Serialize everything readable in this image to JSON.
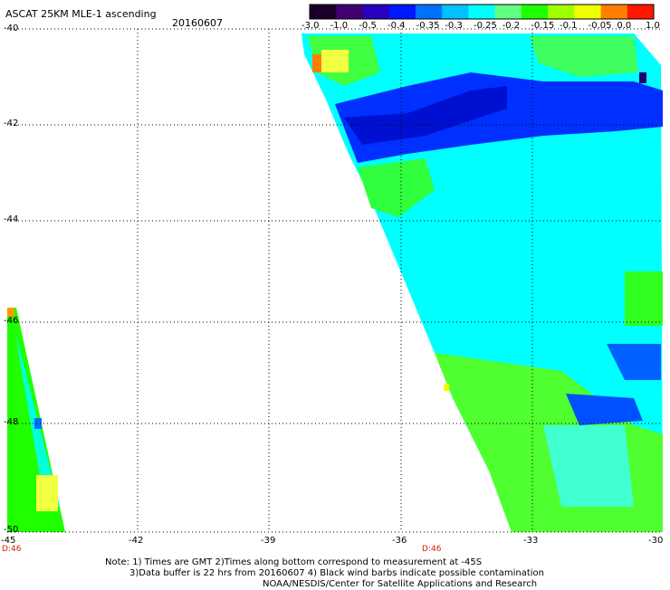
{
  "header": {
    "title": "ASCAT 25KM MLE-1 ascending",
    "date": "20160607"
  },
  "colorbar": {
    "labels": [
      "-3.0",
      "-1.0",
      "-0.5",
      "-0.4",
      "-0.35",
      "-0.3",
      "-0.25",
      "-0.2",
      "-0.15",
      "-0.1",
      "-0.05",
      "0.0",
      "1.0"
    ],
    "colors": [
      "#1a0028",
      "#400070",
      "#2a00c0",
      "#0018ff",
      "#0070ff",
      "#00c0ff",
      "#00ffff",
      "#60ff80",
      "#20ff00",
      "#a0ff00",
      "#f0ff00",
      "#ff8000",
      "#ff1800"
    ]
  },
  "axes": {
    "lat_labels": [
      "-40",
      "-42",
      "-44",
      "-46",
      "-48",
      "-50"
    ],
    "lon_labels": [
      "-45",
      "-42",
      "-39",
      "-36",
      "-33",
      "-30"
    ],
    "swath_labels": [
      "D:46",
      "D:46"
    ]
  },
  "notes": [
    "Note: 1) Times are GMT 2)Times along bottom correspond to measurement at -45S",
    "3)Data buffer is 22 hrs from 20160607 4) Black wind barbs indicate possible contamination",
    "NOAA/NESDIS/Center for Satellite Applications and Research"
  ]
}
